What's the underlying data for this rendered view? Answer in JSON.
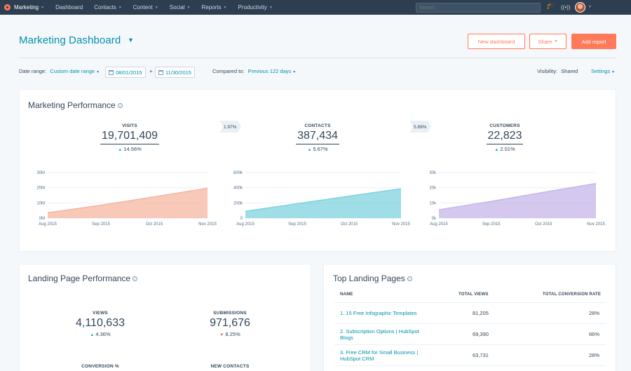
{
  "nav": {
    "brand": "Marketing",
    "items": [
      "Dashboard",
      "Contacts",
      "Content",
      "Social",
      "Reports",
      "Productivity"
    ],
    "search_placeholder": "Search"
  },
  "header": {
    "title": "Marketing Dashboard",
    "new_dashboard": "New dashboard",
    "share": "Share",
    "add_report": "Add report"
  },
  "filters": {
    "date_range_label": "Date range:",
    "date_range_value": "Custom date range",
    "start_date": "08/01/2015",
    "end_date": "11/30/2015",
    "compared_label": "Compared to:",
    "compared_value": "Previous 122 days",
    "visibility_label": "Visibility:",
    "visibility_value": "Shared",
    "settings": "Settings"
  },
  "marketing_performance": {
    "title": "Marketing Performance",
    "conversion_rates": [
      "1.97%",
      "5.89%"
    ],
    "metrics": [
      {
        "label": "VISITS",
        "value": "19,701,409",
        "change": "14.56%"
      },
      {
        "label": "CONTACTS",
        "value": "387,434",
        "change": "5.67%"
      },
      {
        "label": "CUSTOMERS",
        "value": "22,823",
        "change": "2.01%"
      }
    ]
  },
  "chart_data": [
    {
      "type": "area",
      "x": [
        "Aug 2015",
        "Sep 2015",
        "Oct 2015",
        "Nov 2015"
      ],
      "y_ticks": [
        "0M",
        "10M",
        "20M",
        "30M"
      ],
      "ylim": [
        0,
        30000000
      ],
      "series": [
        {
          "values": [
            3500000,
            8500000,
            14000000,
            19700000
          ]
        }
      ],
      "color": "#f5b5a1"
    },
    {
      "type": "area",
      "x": [
        "Aug 2015",
        "Sep 2015",
        "Oct 2015",
        "Nov 2015"
      ],
      "y_ticks": [
        "0",
        "200k",
        "400k",
        "600k"
      ],
      "ylim": [
        0,
        600000
      ],
      "series": [
        {
          "values": [
            90000,
            190000,
            290000,
            387000
          ]
        }
      ],
      "color": "#7fd3dd"
    },
    {
      "type": "area",
      "x": [
        "Aug 2015",
        "Sep 2015",
        "Oct 2015",
        "Nov 2015"
      ],
      "y_ticks": [
        "0k",
        "10k",
        "20k",
        "30k"
      ],
      "ylim": [
        0,
        30000
      ],
      "series": [
        {
          "values": [
            5500,
            11000,
            17000,
            22800
          ]
        }
      ],
      "color": "#c7b6e8"
    }
  ],
  "landing_performance": {
    "title": "Landing Page Performance",
    "views_label": "VIEWS",
    "views_value": "4,110,633",
    "views_change": "4.36%",
    "submissions_label": "SUBMISSIONS",
    "submissions_value": "971,676",
    "submissions_change": "8.25%",
    "conversion_label": "CONVERSION %",
    "new_contacts_label": "NEW CONTACTS"
  },
  "top_pages": {
    "title": "Top Landing Pages",
    "columns": [
      "NAME",
      "TOTAL VIEWS",
      "TOTAL CONVERSION RATE"
    ],
    "rows": [
      {
        "name": "1. 15 Free Infographic Templates",
        "views": "81,205",
        "rate": "28%"
      },
      {
        "name": "2. Subscription Options | HubSpot Blogs",
        "views": "69,390",
        "rate": "66%"
      },
      {
        "name": "3. Free CRM for Small Business | HubSpot CRM",
        "views": "63,731",
        "rate": "28%"
      }
    ]
  }
}
